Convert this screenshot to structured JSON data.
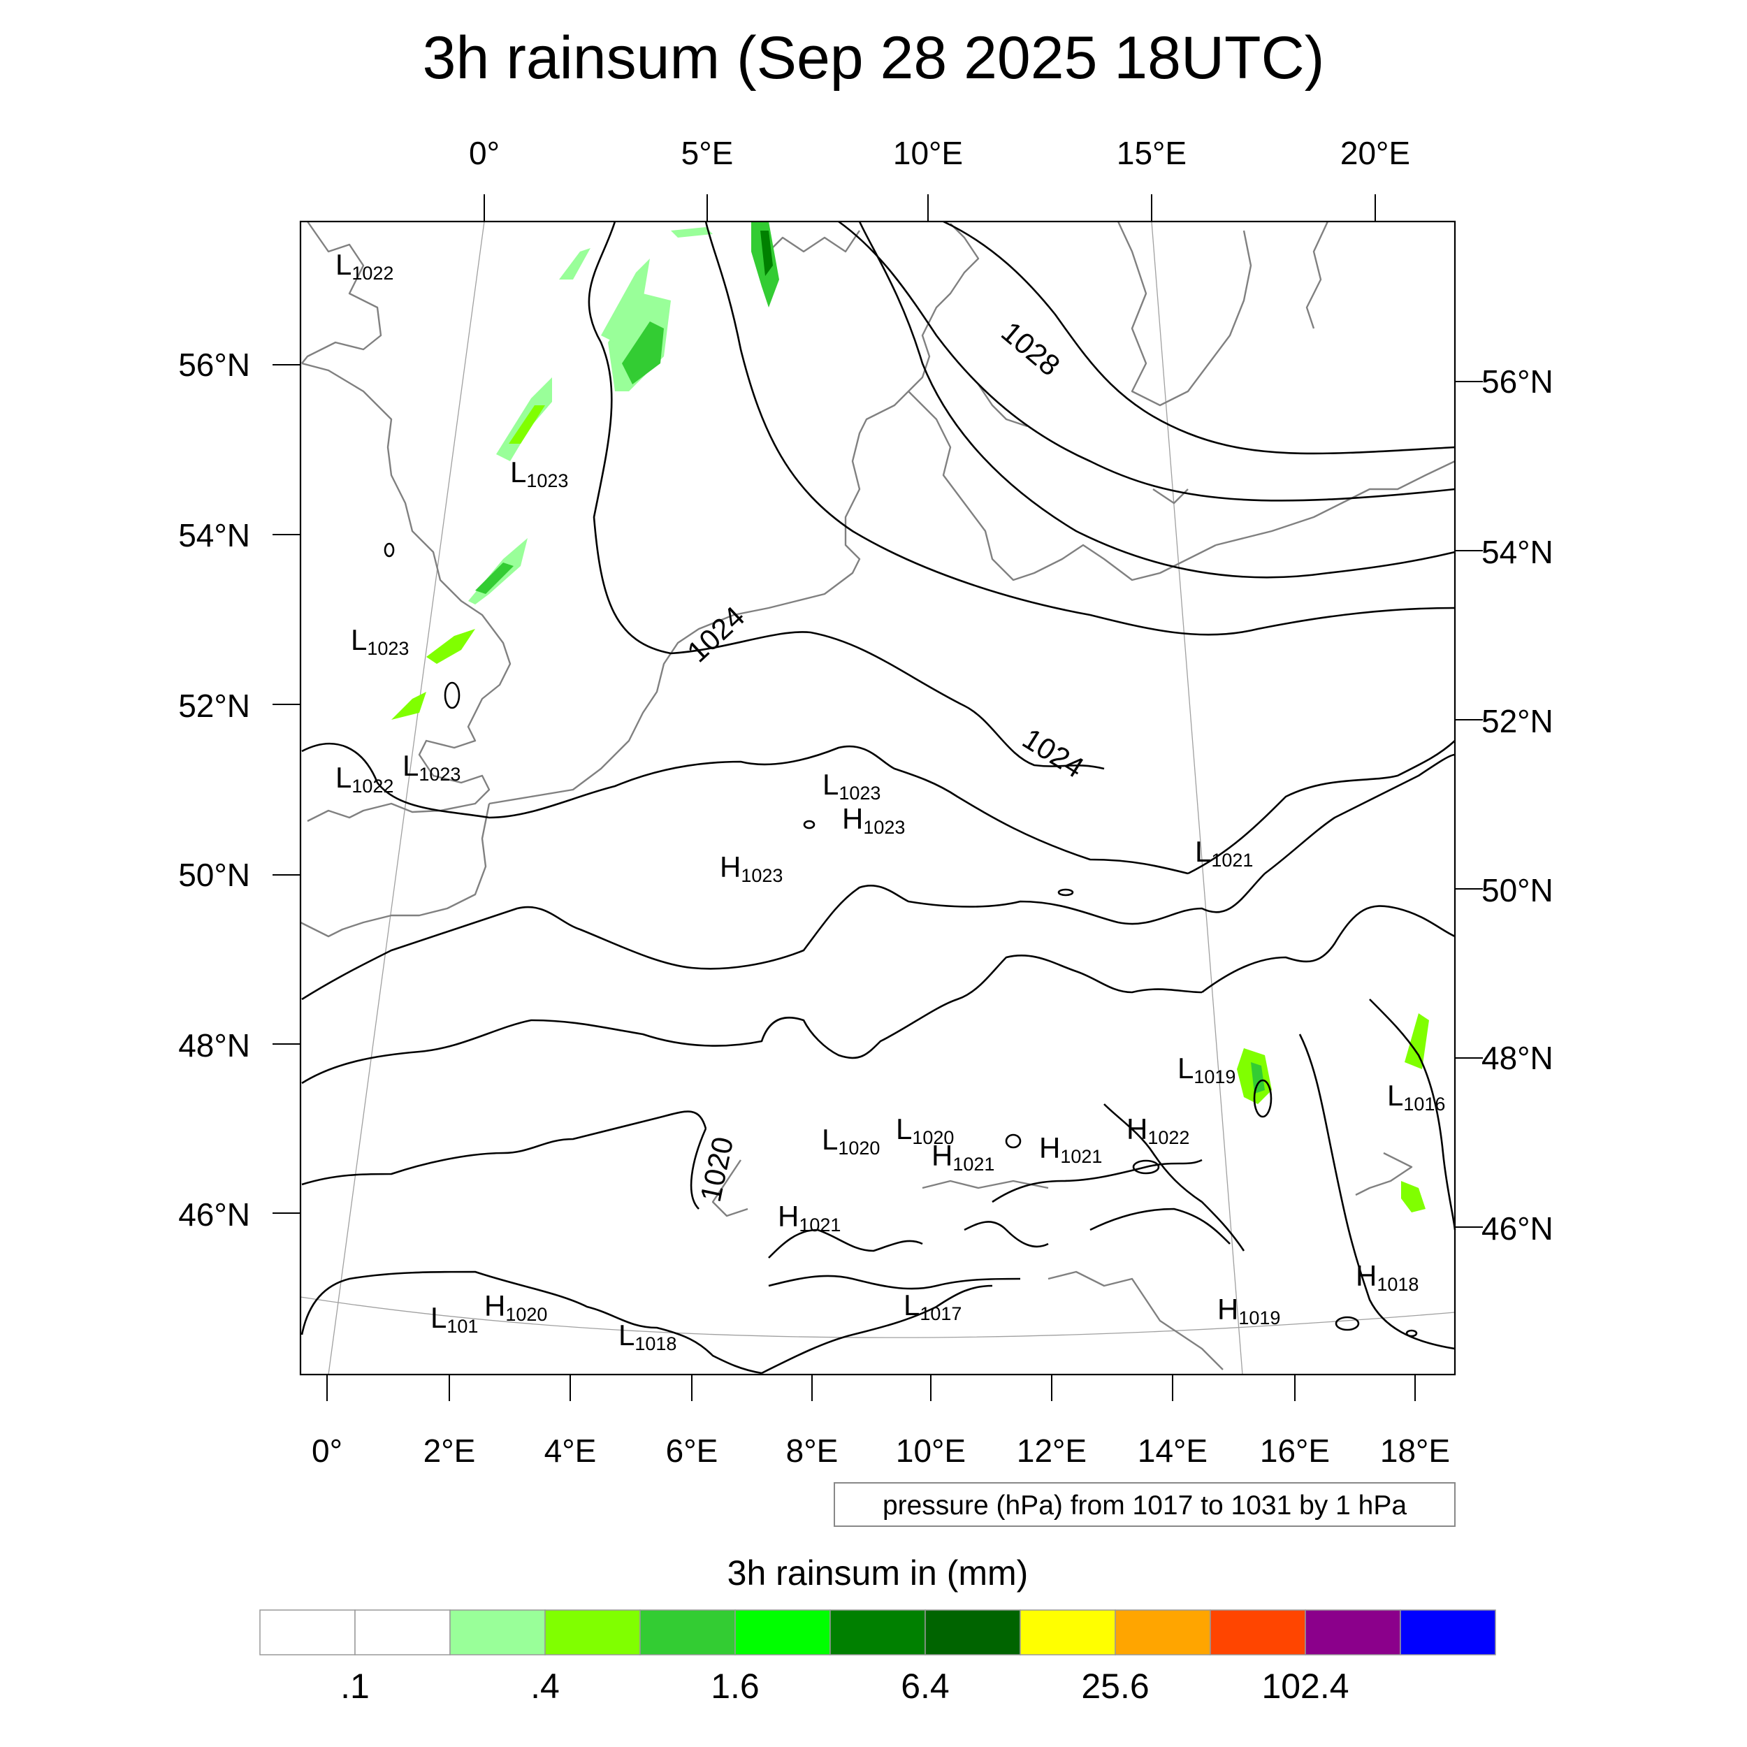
{
  "title": "3h rainsum (Sep 28 2025 18UTC)",
  "top_lon_labels": [
    "0°",
    "5°E",
    "10°E",
    "15°E",
    "20°E"
  ],
  "left_lat_labels": [
    "56°N",
    "54°N",
    "52°N",
    "50°N",
    "48°N",
    "46°N"
  ],
  "right_lat_labels": [
    "56°N",
    "54°N",
    "52°N",
    "50°N",
    "48°N",
    "46°N"
  ],
  "bottom_lon_labels": [
    "0°",
    "2°E",
    "4°E",
    "6°E",
    "8°E",
    "10°E",
    "12°E",
    "14°E",
    "16°E",
    "18°E"
  ],
  "contour_info": "pressure (hPa) from 1017 to 1031 by 1 hPa",
  "isobar_labels": [
    "1028",
    "1024",
    "1024",
    "1020"
  ],
  "pressure_centers": [
    {
      "type": "L",
      "value": "1022"
    },
    {
      "type": "L",
      "value": "1023"
    },
    {
      "type": "L",
      "value": "1023"
    },
    {
      "type": "L",
      "value": "1022"
    },
    {
      "type": "L",
      "value": "1023"
    },
    {
      "type": "L",
      "value": "1023"
    },
    {
      "type": "H",
      "value": "1023"
    },
    {
      "type": "H",
      "value": "1023"
    },
    {
      "type": "L",
      "value": "1021"
    },
    {
      "type": "L",
      "value": "1019"
    },
    {
      "type": "L",
      "value": "1016"
    },
    {
      "type": "L",
      "value": "1020"
    },
    {
      "type": "L",
      "value": "1020"
    },
    {
      "type": "H",
      "value": "1021"
    },
    {
      "type": "H",
      "value": "1021"
    },
    {
      "type": "H",
      "value": "1022"
    },
    {
      "type": "H",
      "value": "1021"
    },
    {
      "type": "L",
      "value": "1017"
    },
    {
      "type": "H",
      "value": "1019"
    },
    {
      "type": "H",
      "value": "1018"
    },
    {
      "type": "L",
      "value": "101"
    },
    {
      "type": "H",
      "value": "1020"
    },
    {
      "type": "L",
      "value": "1018"
    }
  ],
  "colorbar": {
    "title": "3h rainsum in (mm)",
    "colors": [
      "#ffffff",
      "#ffffff",
      "#99ff99",
      "#80ff00",
      "#33cc33",
      "#00ff00",
      "#008000",
      "#006400",
      "#ffff00",
      "#ffa500",
      "#ff4500",
      "#8b008b",
      "#0000ff"
    ],
    "labels": [
      ".1",
      ".4",
      "1.6",
      "6.4",
      "25.6",
      "102.4"
    ]
  },
  "colors": {
    "isobar": "#000000",
    "coastline": "#808080",
    "gridline": "#a0a0a0"
  }
}
